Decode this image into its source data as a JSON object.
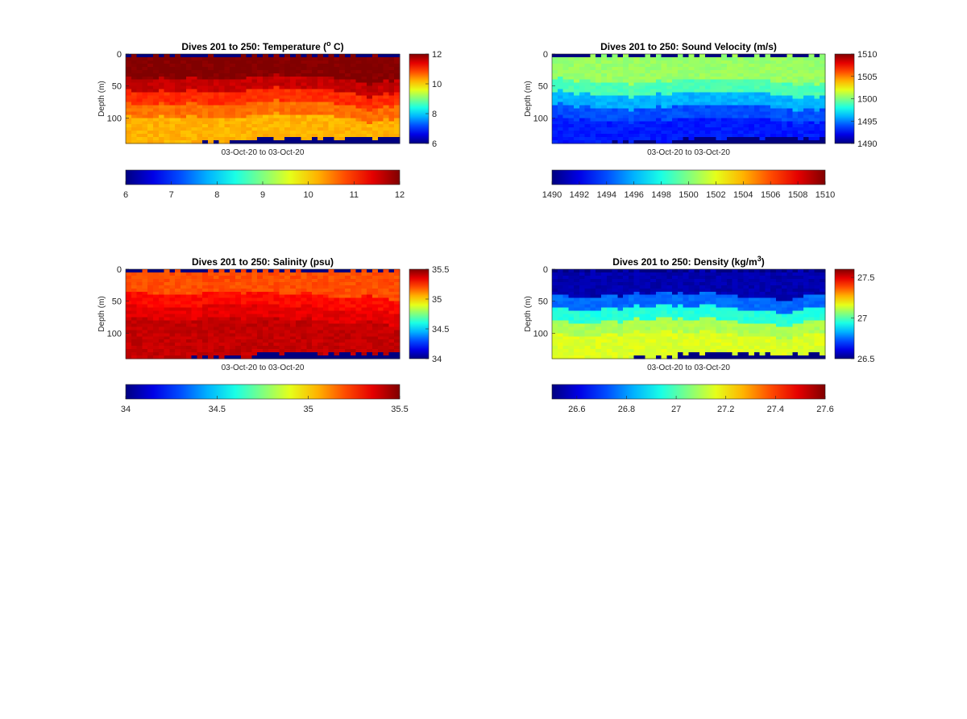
{
  "figure": {
    "background": "#ffffff",
    "colormap": "jet"
  },
  "chart_data": [
    {
      "type": "heatmap",
      "key": "temperature",
      "title": "Dives 201 to 250: Temperature (",
      "title_sup": "o",
      "title_end": " C)",
      "xlabel": "03-Oct-20 to 03-Oct-20",
      "ylabel": "Depth (m)",
      "x_description": "dives 201–250 (time)",
      "ylim": [
        0,
        140
      ],
      "y_ticks": [
        0,
        50,
        100
      ],
      "y_reversed": true,
      "clim": [
        6,
        12
      ],
      "side_colorbar_ticks": [
        "12",
        "10",
        "8",
        "6"
      ],
      "horizontal_colorbar_ticks": [
        "6",
        "7",
        "8",
        "9",
        "10",
        "11",
        "12"
      ],
      "layers": [
        {
          "from_depth": 0,
          "to_depth": 40,
          "value": 12.0
        },
        {
          "from_depth": 40,
          "to_depth": 60,
          "value": 11.6
        },
        {
          "from_depth": 60,
          "to_depth": 80,
          "value": 11.0
        },
        {
          "from_depth": 80,
          "to_depth": 100,
          "value": 10.6
        },
        {
          "from_depth": 100,
          "to_depth": 140,
          "value": 10.2
        }
      ],
      "surface_missing_value": 6.0,
      "bottom_missing_value": 6.0
    },
    {
      "type": "heatmap",
      "key": "sound_velocity",
      "title": "Dives 201 to 250: Sound Velocity (m/s)",
      "xlabel": "03-Oct-20 to 03-Oct-20",
      "ylabel": "Depth (m)",
      "x_description": "dives 201–250 (time)",
      "ylim": [
        0,
        140
      ],
      "y_ticks": [
        0,
        50,
        100
      ],
      "y_reversed": true,
      "clim": [
        1490,
        1510
      ],
      "side_colorbar_ticks": [
        "1510",
        "1505",
        "1500",
        "1495",
        "1490"
      ],
      "horizontal_colorbar_ticks": [
        "1490",
        "1492",
        "1494",
        "1496",
        "1498",
        "1500",
        "1502",
        "1504",
        "1506",
        "1508",
        "1510"
      ],
      "layers": [
        {
          "from_depth": 0,
          "to_depth": 40,
          "value": 1500.5
        },
        {
          "from_depth": 40,
          "to_depth": 60,
          "value": 1499.0
        },
        {
          "from_depth": 60,
          "to_depth": 80,
          "value": 1496.0
        },
        {
          "from_depth": 80,
          "to_depth": 100,
          "value": 1494.0
        },
        {
          "from_depth": 100,
          "to_depth": 140,
          "value": 1493.0
        }
      ],
      "surface_missing_value": 1490,
      "bottom_missing_value": 1490
    },
    {
      "type": "heatmap",
      "key": "salinity",
      "title": "Dives 201 to 250: Salinity (psu)",
      "xlabel": "03-Oct-20 to 03-Oct-20",
      "ylabel": "Depth (m)",
      "x_description": "dives 201–250 (time)",
      "ylim": [
        0,
        140
      ],
      "y_ticks": [
        0,
        50,
        100
      ],
      "y_reversed": true,
      "clim": [
        34,
        35.5
      ],
      "side_colorbar_ticks": [
        "35.5",
        "35",
        "34.5",
        "34"
      ],
      "horizontal_colorbar_ticks": [
        "34",
        "34.5",
        "35",
        "35.5"
      ],
      "layers": [
        {
          "from_depth": 0,
          "to_depth": 40,
          "value": 35.2
        },
        {
          "from_depth": 40,
          "to_depth": 60,
          "value": 35.3
        },
        {
          "from_depth": 60,
          "to_depth": 80,
          "value": 35.35
        },
        {
          "from_depth": 80,
          "to_depth": 100,
          "value": 35.4
        },
        {
          "from_depth": 100,
          "to_depth": 140,
          "value": 35.4
        }
      ],
      "surface_missing_value": 34.0,
      "bottom_missing_value": 34.0
    },
    {
      "type": "heatmap",
      "key": "density",
      "title": "Dives 201 to 250: Density (kg/m",
      "title_sup": "3",
      "title_end": ")",
      "xlabel": "03-Oct-20 to 03-Oct-20",
      "ylabel": "Depth (m)",
      "x_description": "dives 201–250 (time)",
      "ylim": [
        0,
        140
      ],
      "y_ticks": [
        0,
        50,
        100
      ],
      "y_reversed": true,
      "clim": [
        26.5,
        27.6
      ],
      "side_colorbar_ticks": [
        "27.5",
        "27",
        "26.5"
      ],
      "horizontal_colorbar_ticks": [
        "26.6",
        "26.8",
        "27",
        "27.2",
        "27.4",
        "27.6"
      ],
      "layers": [
        {
          "from_depth": 0,
          "to_depth": 40,
          "value": 26.55
        },
        {
          "from_depth": 40,
          "to_depth": 60,
          "value": 26.75
        },
        {
          "from_depth": 60,
          "to_depth": 80,
          "value": 26.95
        },
        {
          "from_depth": 80,
          "to_depth": 100,
          "value": 27.1
        },
        {
          "from_depth": 100,
          "to_depth": 140,
          "value": 27.15
        }
      ],
      "surface_missing_value": 26.5,
      "bottom_missing_value": 26.5
    }
  ]
}
